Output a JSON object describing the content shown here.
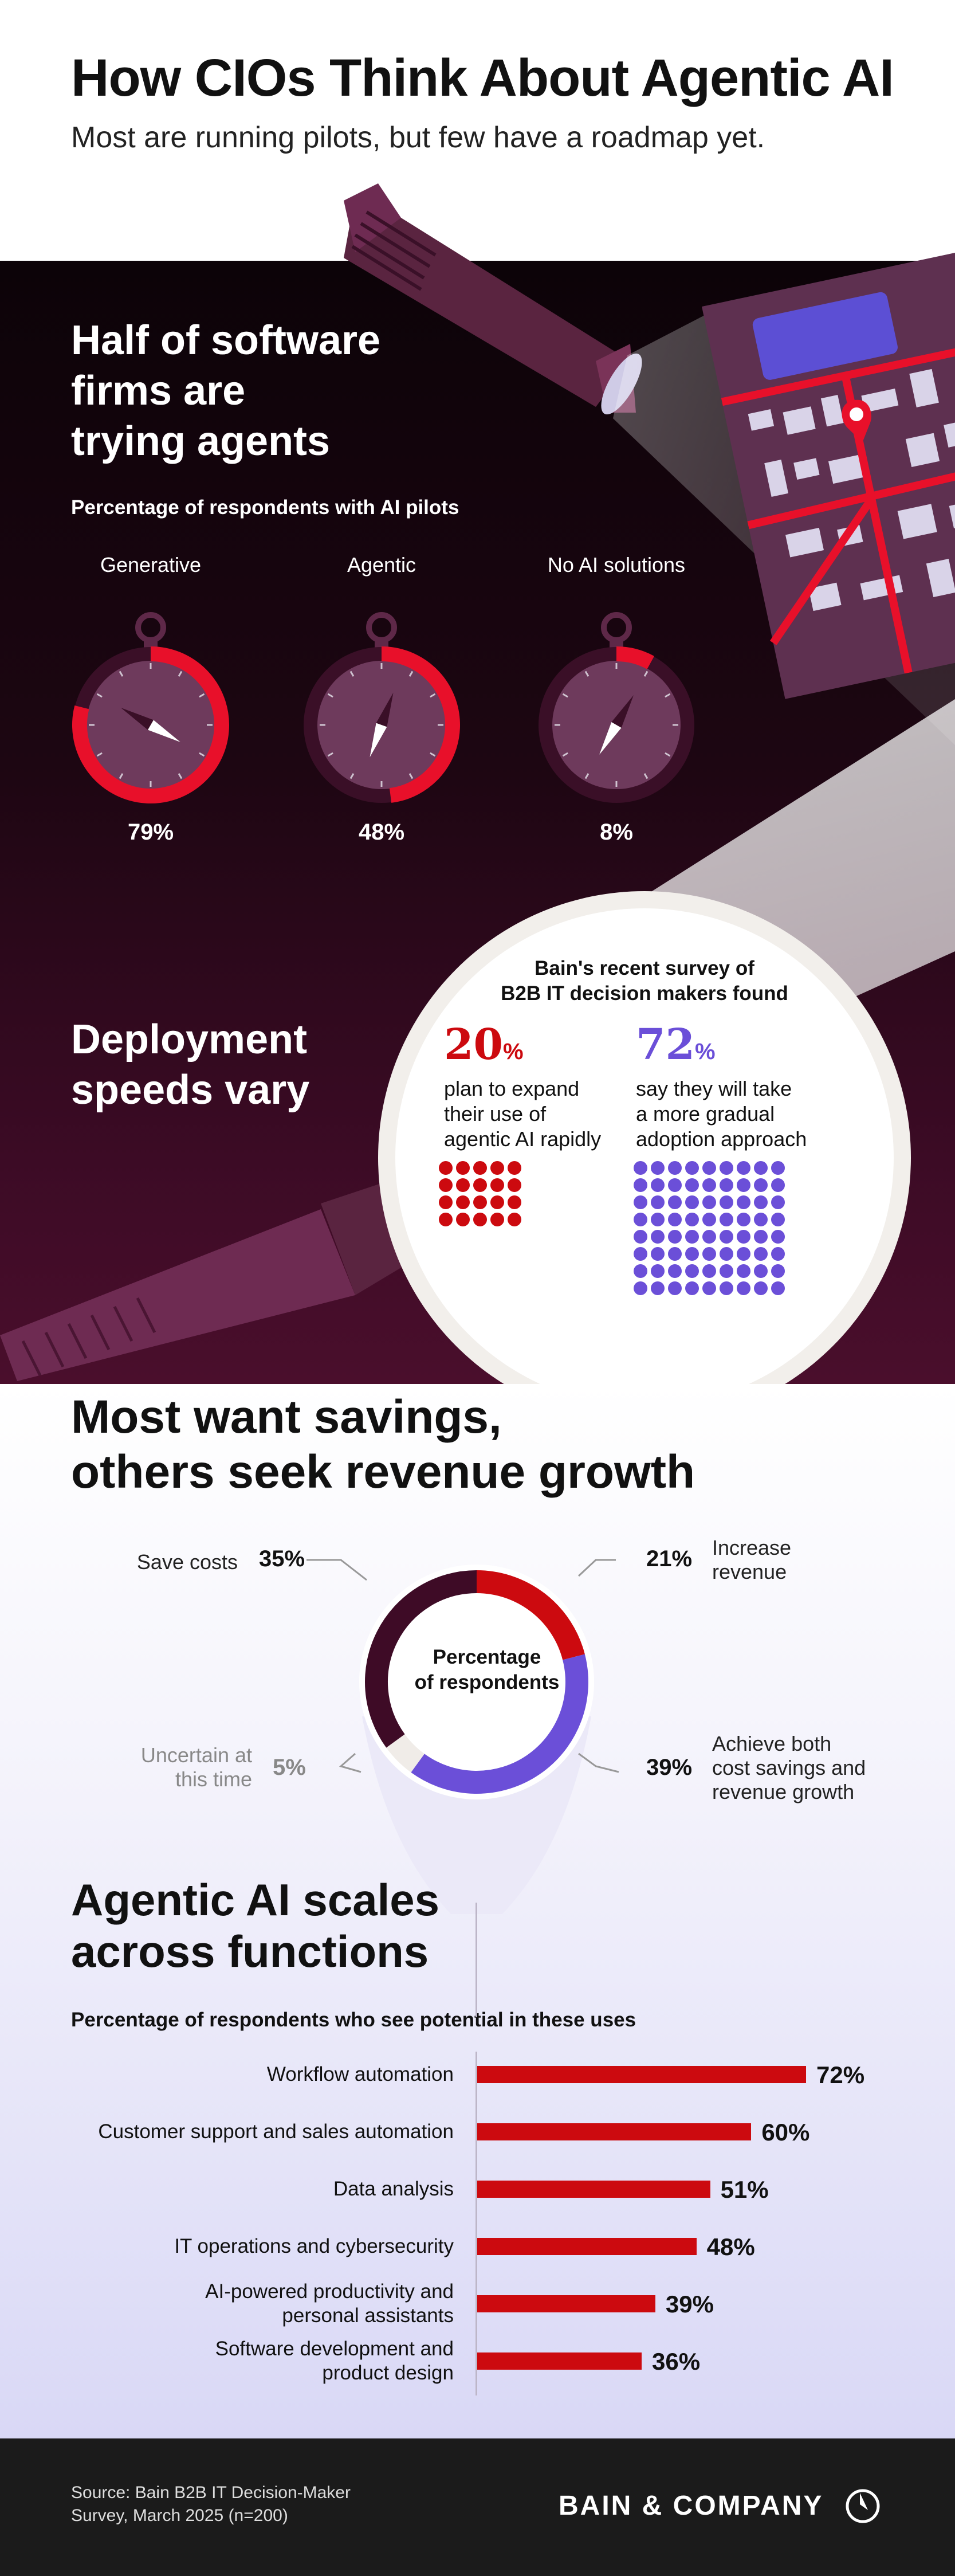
{
  "header": {
    "title": "How CIOs Think About Agentic AI",
    "subtitle": "Most are running pilots, but few have a roadmap yet."
  },
  "pilots": {
    "heading": [
      "Half of software",
      "firms are",
      "trying agents"
    ],
    "caption": "Percentage of respondents with AI pilots"
  },
  "deployment": {
    "heading": [
      "Deployment",
      "speeds vary"
    ],
    "survey_heading": [
      "Bain's recent survey of",
      "B2B IT decision makers found"
    ],
    "rapid": {
      "value": "20",
      "unit": "%",
      "text": [
        "plan to expand",
        "their use of",
        "agentic AI rapidly"
      ]
    },
    "gradual": {
      "value": "72",
      "unit": "%",
      "text": [
        "say they will take",
        "a more gradual",
        "adoption approach"
      ]
    }
  },
  "goals": {
    "heading": [
      "Most want savings,",
      "others seek revenue growth"
    ],
    "center_label": [
      "Percentage",
      "of respondents"
    ]
  },
  "functions": {
    "heading": [
      "Agentic AI scales",
      "across functions"
    ],
    "caption": "Percentage of respondents who see potential in these uses"
  },
  "chart_data": [
    {
      "type": "gauge",
      "categories": [
        "Generative",
        "Agentic",
        "No AI solutions"
      ],
      "values": [
        79,
        48,
        8
      ],
      "labels": [
        "79%",
        "48%",
        "8%"
      ],
      "color": "#e8102a"
    },
    {
      "type": "dot-matrix",
      "categories": [
        "plan to expand rapidly",
        "more gradual adoption"
      ],
      "values": [
        20,
        72
      ],
      "colors": [
        "#cc0a0f",
        "#6b4fd8"
      ]
    },
    {
      "type": "pie",
      "categories": [
        "Save costs",
        "Increase revenue",
        "Achieve both cost savings and revenue growth",
        "Uncertain at this time"
      ],
      "values": [
        35,
        21,
        39,
        5
      ],
      "labels": [
        "35%",
        "21%",
        "39%",
        "5%"
      ],
      "label_lines": [
        [
          "Save costs"
        ],
        [
          "Increase",
          "revenue"
        ],
        [
          "Achieve both",
          "cost savings and",
          "revenue growth"
        ],
        [
          "Uncertain at",
          "this time"
        ]
      ],
      "colors": [
        "#3e0b26",
        "#cc0a0f",
        "#6b4fd8",
        "#f0ece8"
      ]
    },
    {
      "type": "bar",
      "orientation": "horizontal",
      "categories": [
        "Workflow automation",
        "Customer support and sales automation",
        "Data analysis",
        "IT operations and cybersecurity",
        "AI-powered productivity and personal assistants",
        "Software development and product design"
      ],
      "label_lines": [
        [
          "Workflow automation"
        ],
        [
          "Customer support and sales automation"
        ],
        [
          "Data analysis"
        ],
        [
          "IT operations and cybersecurity"
        ],
        [
          "AI-powered productivity and",
          "personal assistants"
        ],
        [
          "Software development and",
          "product design"
        ]
      ],
      "values": [
        72,
        60,
        51,
        48,
        39,
        36
      ],
      "labels": [
        "72%",
        "60%",
        "51%",
        "48%",
        "39%",
        "36%"
      ],
      "color": "#cc0a0f"
    }
  ],
  "footer": {
    "source": [
      "Source: Bain B2B IT Decision-Maker",
      "Survey, March 2025 (n=200)"
    ],
    "logo": "BAIN & COMPANY"
  }
}
